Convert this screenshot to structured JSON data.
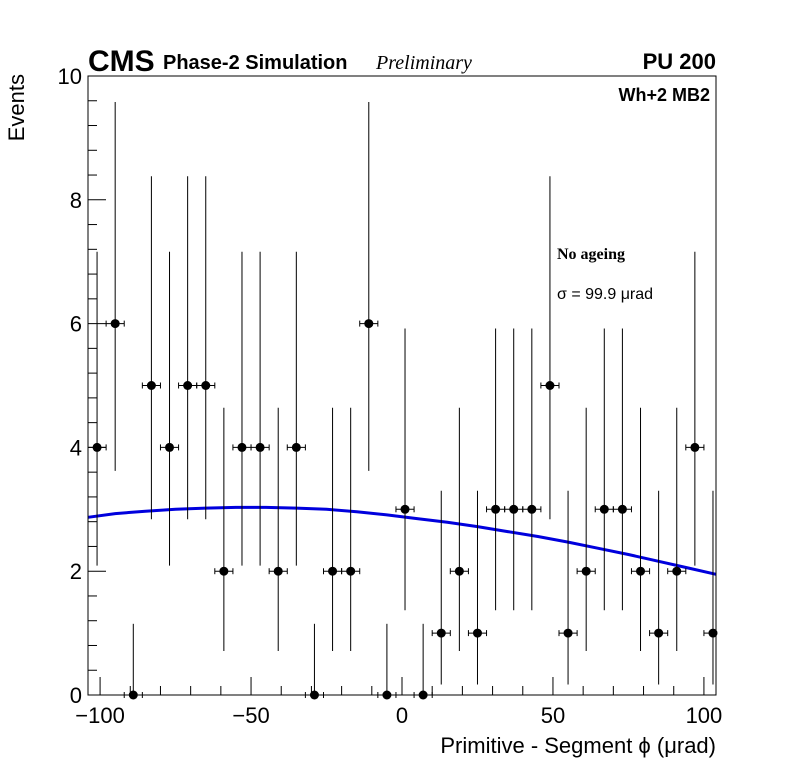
{
  "header": {
    "cms": "CMS",
    "simulation": "Phase-2 Simulation",
    "preliminary": "Preliminary",
    "pileup": "PU 200",
    "station": "Wh+2 MB2"
  },
  "annotation": {
    "scenario": "No ageing",
    "sigma": "σ = 99.9  μrad"
  },
  "chart_data": {
    "type": "scatter",
    "xlabel": "Primitive - Segment ϕ (μrad)",
    "ylabel": "Events",
    "xlim": [
      -104,
      104
    ],
    "ylim": [
      0,
      10
    ],
    "x_ticks": [
      -100,
      -50,
      0,
      50,
      100
    ],
    "x_tick_labels": [
      "−100",
      "−50",
      "0",
      "50",
      "100"
    ],
    "y_ticks": [
      0,
      2,
      4,
      6,
      8,
      10
    ],
    "y_tick_labels": [
      "0",
      "2",
      "4",
      "6",
      "8",
      "10"
    ],
    "grid": false,
    "bin_width": 6,
    "series": [
      {
        "x": [
          -101,
          -95,
          -89,
          -83,
          -77,
          -71,
          -65,
          -59,
          -53,
          -47,
          -41,
          -35,
          -29,
          -23,
          -17,
          -11,
          -5,
          1,
          7,
          13,
          19,
          25,
          31,
          37,
          43,
          49,
          55,
          61,
          67,
          73,
          79,
          85,
          91,
          97,
          103
        ],
        "y": [
          4,
          6,
          0,
          5,
          4,
          5,
          5,
          2,
          4,
          4,
          2,
          4,
          0,
          2,
          2,
          6,
          0,
          3,
          0,
          1,
          2,
          1,
          3,
          3,
          3,
          5,
          1,
          2,
          3,
          3,
          2,
          1,
          2,
          4,
          1
        ],
        "yerr_low": [
          1.91,
          2.38,
          0,
          2.16,
          1.91,
          2.16,
          2.16,
          1.29,
          1.91,
          1.91,
          1.29,
          1.91,
          0,
          1.29,
          1.29,
          2.38,
          0,
          1.63,
          0,
          0.83,
          1.29,
          0.83,
          1.63,
          1.63,
          1.63,
          2.16,
          0.83,
          1.29,
          1.63,
          1.63,
          1.29,
          0.83,
          1.29,
          1.91,
          0.83
        ],
        "yerr_high": [
          3.16,
          3.58,
          1.15,
          3.38,
          3.16,
          3.38,
          3.38,
          2.64,
          3.16,
          3.16,
          2.64,
          3.16,
          1.15,
          2.64,
          2.64,
          3.58,
          1.15,
          2.92,
          1.15,
          2.3,
          2.64,
          2.3,
          2.92,
          2.92,
          2.92,
          3.38,
          2.3,
          2.64,
          2.92,
          2.92,
          2.64,
          2.3,
          2.64,
          3.16,
          2.3
        ]
      }
    ],
    "fit": {
      "color": "#0000dd",
      "x": [
        -104,
        -95,
        -85,
        -75,
        -65,
        -55,
        -45,
        -35,
        -25,
        -15,
        -5,
        5,
        15,
        25,
        35,
        45,
        55,
        65,
        75,
        85,
        95,
        104
      ],
      "y": [
        2.87,
        2.93,
        2.97,
        3.0,
        3.02,
        3.03,
        3.03,
        3.02,
        3.0,
        2.96,
        2.91,
        2.85,
        2.79,
        2.72,
        2.64,
        2.56,
        2.47,
        2.37,
        2.27,
        2.16,
        2.05,
        1.95
      ]
    }
  }
}
